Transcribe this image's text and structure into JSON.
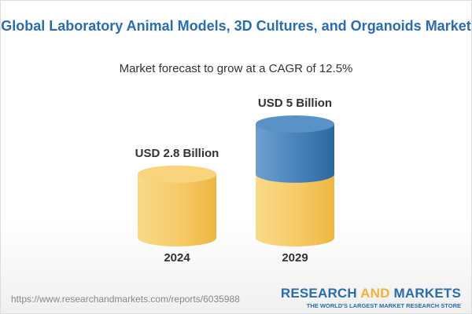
{
  "chart_data": {
    "type": "bar",
    "title": "Global Laboratory Animal Models, 3D Cultures, and Organoids Market",
    "subtitle": "Market forecast to grow at a CAGR of 12.5%",
    "categories": [
      "2024",
      "2029"
    ],
    "values": [
      2.8,
      5
    ],
    "value_labels": [
      "USD 2.8 Billion",
      "USD 5 Billion"
    ],
    "unit": "USD Billion",
    "colors": {
      "base": "#f5c95e",
      "growth": "#3f7fb8"
    }
  },
  "footer": {
    "url": "https://www.researchandmarkets.com/reports/6035988",
    "logo_part1": "RESEARCH ",
    "logo_part2": "AND",
    "logo_part3": " MARKETS",
    "tagline": "THE WORLD'S LARGEST MARKET RESEARCH STORE"
  }
}
